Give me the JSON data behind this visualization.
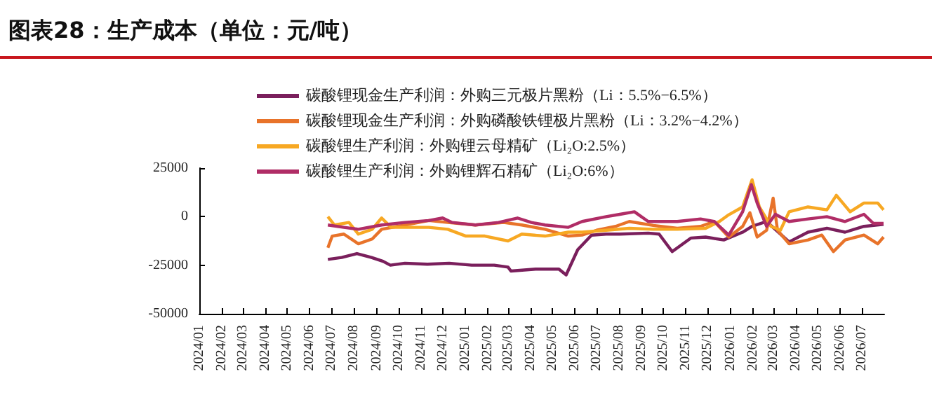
{
  "chart_data": {
    "type": "line",
    "title": "图表28：生产成本（单位：元/吨）",
    "xlim": [
      "2024-01-01",
      "2026-08-01"
    ],
    "xticks": [
      {
        "value": "2024-01-01",
        "label": "2024/01"
      },
      {
        "value": "2024-02-01",
        "label": "2024/02"
      },
      {
        "value": "2024-03-01",
        "label": "2024/03"
      },
      {
        "value": "2024-04-01",
        "label": "2024/04"
      },
      {
        "value": "2024-05-01",
        "label": "2024/05"
      },
      {
        "value": "2024-06-01",
        "label": "2024/06"
      },
      {
        "value": "2024-07-01",
        "label": "2024/07"
      },
      {
        "value": "2024-08-01",
        "label": "2024/08"
      },
      {
        "value": "2024-09-01",
        "label": "2024/09"
      },
      {
        "value": "2024-10-01",
        "label": "2024/10"
      },
      {
        "value": "2024-11-01",
        "label": "2024/11"
      },
      {
        "value": "2024-12-01",
        "label": "2024/12"
      },
      {
        "value": "2025-01-01",
        "label": "2025/01"
      },
      {
        "value": "2025-02-01",
        "label": "2025/02"
      },
      {
        "value": "2025-03-01",
        "label": "2025/03"
      },
      {
        "value": "2025-04-01",
        "label": "2025/04"
      },
      {
        "value": "2025-05-01",
        "label": "2025/05"
      },
      {
        "value": "2025-06-01",
        "label": "2025/06"
      },
      {
        "value": "2025-07-01",
        "label": "2025/07"
      },
      {
        "value": "2025-08-01",
        "label": "2025/08"
      },
      {
        "value": "2025-09-01",
        "label": "2025/09"
      },
      {
        "value": "2025-10-01",
        "label": "2025/10"
      },
      {
        "value": "2025-11-01",
        "label": "2025/11"
      },
      {
        "value": "2025-12-01",
        "label": "2025/12"
      },
      {
        "value": "2026-01-01",
        "label": "2026/01"
      },
      {
        "value": "2026-02-01",
        "label": "2026/02"
      },
      {
        "value": "2026-03-01",
        "label": "2026/03"
      },
      {
        "value": "2026-04-01",
        "label": "2026/04"
      },
      {
        "value": "2026-05-01",
        "label": "2026/05"
      },
      {
        "value": "2026-06-01",
        "label": "2026/06"
      },
      {
        "value": "2026-07-01",
        "label": "2026/07"
      }
    ],
    "ylim": [
      -50000,
      25000
    ],
    "yticks": [
      -50000,
      -25000,
      0,
      25000
    ],
    "grid": false,
    "legend": "top",
    "marker": "none",
    "line_style": "solid",
    "series": [
      {
        "name": "碳酸锂现金生产利润：外购三元极片黑粉（Li：5.5%−6.5%）",
        "color": "#7a1f5c",
        "x": [
          "2024-06-26",
          "2024-07-15",
          "2024-08-05",
          "2024-08-25",
          "2024-09-10",
          "2024-09-20",
          "2024-10-10",
          "2024-11-10",
          "2024-12-10",
          "2025-01-10",
          "2025-02-10",
          "2025-03-01",
          "2025-03-05",
          "2025-04-08",
          "2025-05-10",
          "2025-05-20",
          "2025-06-05",
          "2025-06-24",
          "2025-07-14",
          "2025-08-02",
          "2025-09-10",
          "2025-09-25",
          "2025-10-13",
          "2025-11-08",
          "2025-11-28",
          "2025-12-23",
          "2026-01-18",
          "2026-01-31",
          "2026-02-20",
          "2026-03-23",
          "2026-04-18",
          "2026-05-14",
          "2026-06-08",
          "2026-07-04",
          "2026-07-31"
        ],
        "values": [
          -22000,
          -21000,
          -19000,
          -21000,
          -23000,
          -25000,
          -24000,
          -24500,
          -24000,
          -25000,
          -25000,
          -26000,
          -28000,
          -27000,
          -27000,
          -30000,
          -17000,
          -9500,
          -9000,
          -9000,
          -8500,
          -9000,
          -18000,
          -11000,
          -10500,
          -12000,
          -8000,
          -5000,
          -2500,
          -13000,
          -8000,
          -6000,
          -8000,
          -5000,
          -4000
        ]
      },
      {
        "name": "碳酸锂现金生产利润：外购磷酸铁锂极片黑粉（Li：3.2%−4.2%）",
        "color": "#e8732a",
        "x": [
          "2024-06-26",
          "2024-07-02",
          "2024-07-18",
          "2024-08-07",
          "2024-08-26",
          "2024-09-08",
          "2024-10-10",
          "2024-11-12",
          "2024-12-08",
          "2025-01-15",
          "2025-02-23",
          "2025-03-20",
          "2025-04-21",
          "2025-05-23",
          "2025-06-11",
          "2025-07-01",
          "2025-07-27",
          "2025-08-15",
          "2025-09-17",
          "2025-10-20",
          "2025-11-21",
          "2025-12-10",
          "2025-12-30",
          "2026-01-18",
          "2026-01-28",
          "2026-02-07",
          "2026-02-20",
          "2026-03-01",
          "2026-03-07",
          "2026-03-23",
          "2026-04-18",
          "2026-05-07",
          "2026-05-23",
          "2026-06-08",
          "2026-07-04",
          "2026-07-23",
          "2026-07-31"
        ],
        "values": [
          -16000,
          -10000,
          -9000,
          -14000,
          -11500,
          -6500,
          -4300,
          -2000,
          -3000,
          -4300,
          -3000,
          -4300,
          -6500,
          -10000,
          -9500,
          -7000,
          -5000,
          -2500,
          -4500,
          -6000,
          -5000,
          -2500,
          -10500,
          -5000,
          2000,
          -10500,
          -7000,
          9500,
          -7000,
          -14000,
          -12000,
          -9500,
          -18000,
          -12000,
          -9500,
          -14000,
          -10500
        ]
      },
      {
        "name": "碳酸锂生产利润：外购锂云母精矿（Li₂O:2.5%）",
        "color": "#f7a823",
        "x": [
          "2024-06-26",
          "2024-07-05",
          "2024-07-25",
          "2024-08-07",
          "2024-08-26",
          "2024-09-08",
          "2024-09-21",
          "2024-11-12",
          "2024-12-08",
          "2025-01-02",
          "2025-01-28",
          "2025-03-01",
          "2025-03-20",
          "2025-04-21",
          "2025-05-23",
          "2025-06-11",
          "2025-07-14",
          "2025-08-15",
          "2025-09-17",
          "2025-10-20",
          "2025-11-28",
          "2025-12-17",
          "2025-12-30",
          "2026-01-18",
          "2026-01-31",
          "2026-02-10",
          "2026-02-26",
          "2026-03-11",
          "2026-03-23",
          "2026-04-18",
          "2026-05-14",
          "2026-05-27",
          "2026-06-15",
          "2026-07-04",
          "2026-07-23",
          "2026-07-31"
        ],
        "values": [
          0,
          -4300,
          -3000,
          -9000,
          -6500,
          -700,
          -5500,
          -5500,
          -6500,
          -10000,
          -10000,
          -12500,
          -9000,
          -10000,
          -8000,
          -8000,
          -7000,
          -6000,
          -6500,
          -6500,
          -6000,
          -2500,
          1000,
          5000,
          19000,
          5000,
          -5000,
          -7000,
          2500,
          5000,
          3500,
          11000,
          2500,
          7000,
          7000,
          3500
        ]
      },
      {
        "name": "碳酸锂生产利润：外购锂辉石精矿（Li₂O:6%）",
        "color": "#b02d66",
        "x": [
          "2024-06-26",
          "2024-07-18",
          "2024-08-07",
          "2024-09-08",
          "2024-10-10",
          "2024-11-12",
          "2024-12-01",
          "2024-12-14",
          "2025-01-15",
          "2025-02-16",
          "2025-03-14",
          "2025-04-02",
          "2025-04-21",
          "2025-05-23",
          "2025-06-11",
          "2025-07-14",
          "2025-08-02",
          "2025-08-22",
          "2025-09-10",
          "2025-10-20",
          "2025-11-21",
          "2025-12-10",
          "2025-12-30",
          "2026-01-18",
          "2026-01-30",
          "2026-02-07",
          "2026-02-20",
          "2026-03-04",
          "2026-03-23",
          "2026-04-18",
          "2026-05-14",
          "2026-06-08",
          "2026-07-04",
          "2026-07-17",
          "2026-07-31"
        ],
        "values": [
          -4300,
          -5500,
          -6500,
          -4300,
          -3000,
          -2000,
          -700,
          -3000,
          -4300,
          -3000,
          -700,
          -3000,
          -4300,
          -5500,
          -2500,
          0,
          1200,
          2500,
          -2500,
          -2500,
          -1200,
          -2500,
          -9500,
          2500,
          16500,
          7000,
          -5000,
          1200,
          -2500,
          -1200,
          0,
          -2500,
          1200,
          -3500,
          -3500
        ]
      }
    ]
  }
}
